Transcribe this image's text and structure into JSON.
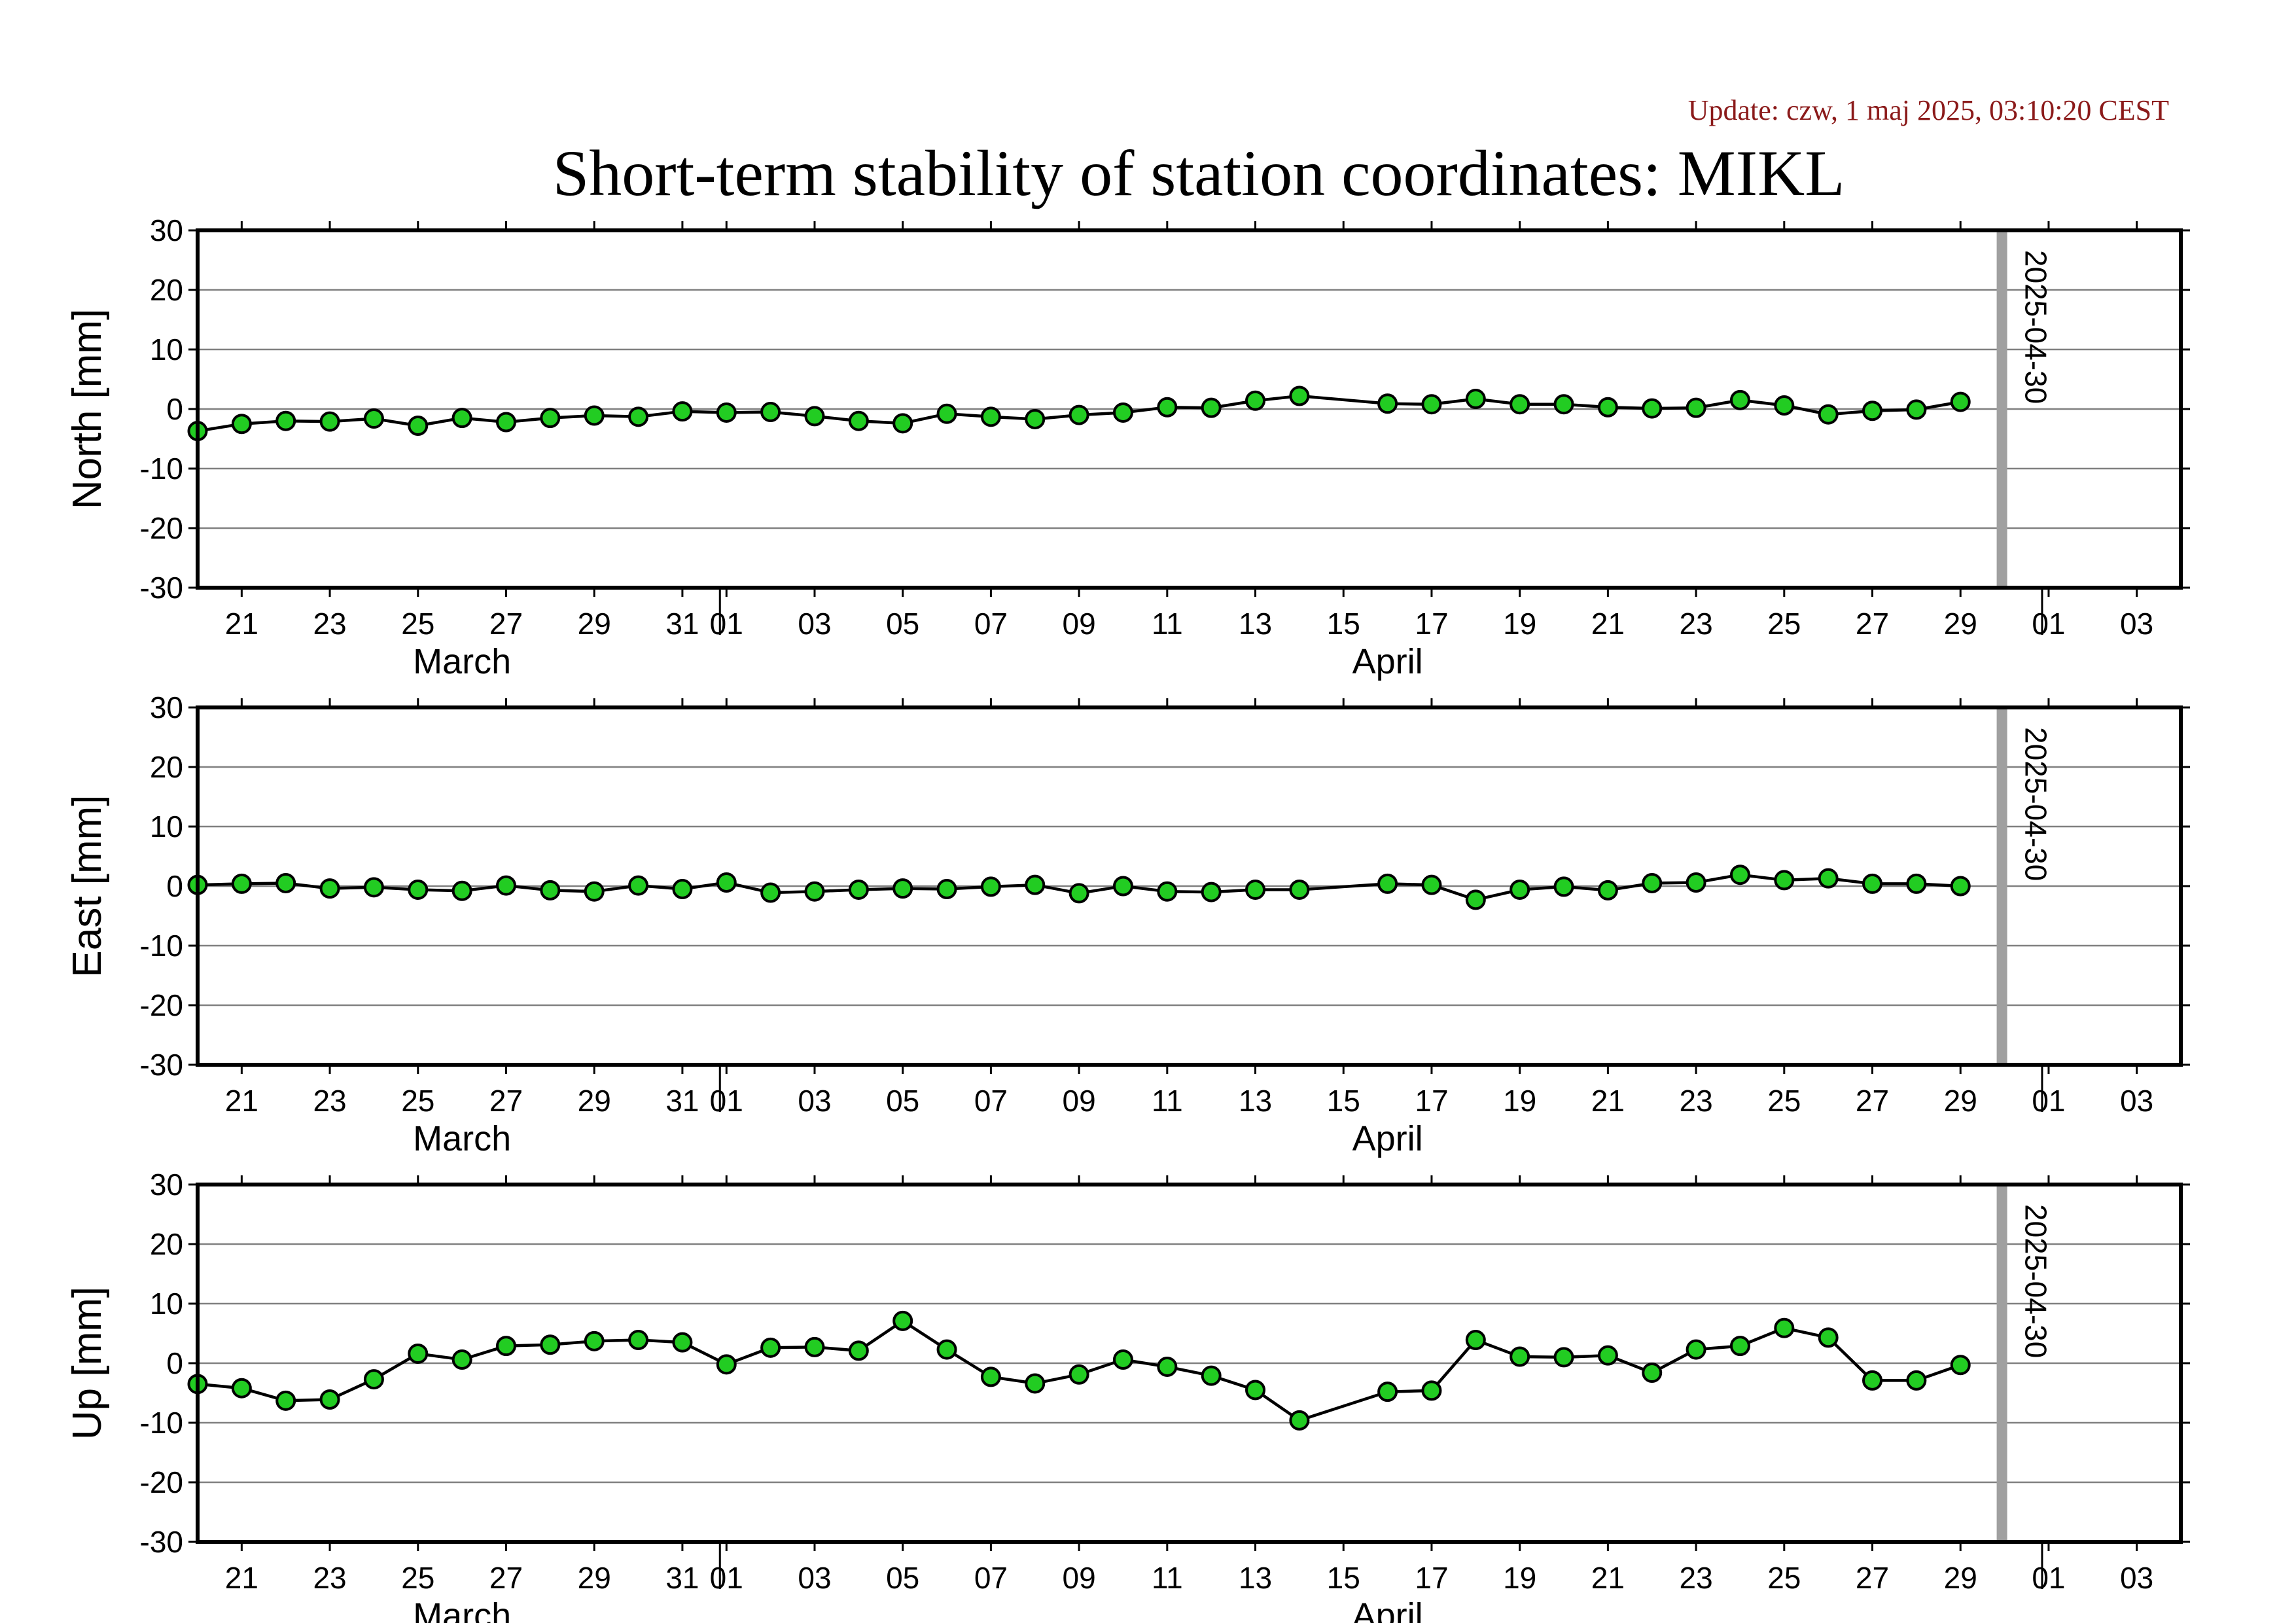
{
  "header": {
    "update": "Update: czw, 1 maj 2025, 03:10:20 CEST",
    "title": "Short-term stability of station coordinates: MIKL"
  },
  "colors": {
    "point_fill": "#22cc22",
    "point_stroke": "#000000",
    "marker_line": "#a0a0a0",
    "grid": "#808080"
  },
  "chart_data": [
    {
      "type": "line",
      "ylabel": "North [mm]",
      "ylim": [
        -30,
        30
      ],
      "yticks": [
        -30,
        -20,
        -10,
        0,
        10,
        20,
        30
      ],
      "grid": true,
      "marker": {
        "date": "2025-04-30",
        "label": "2025-04-30"
      },
      "x": [
        "2025-03-20",
        "2025-03-21",
        "2025-03-22",
        "2025-03-23",
        "2025-03-24",
        "2025-03-25",
        "2025-03-26",
        "2025-03-27",
        "2025-03-28",
        "2025-03-29",
        "2025-03-30",
        "2025-03-31",
        "2025-04-01",
        "2025-04-02",
        "2025-04-03",
        "2025-04-04",
        "2025-04-05",
        "2025-04-06",
        "2025-04-07",
        "2025-04-08",
        "2025-04-09",
        "2025-04-10",
        "2025-04-11",
        "2025-04-12",
        "2025-04-13",
        "2025-04-14",
        "2025-04-16",
        "2025-04-17",
        "2025-04-18",
        "2025-04-19",
        "2025-04-20",
        "2025-04-21",
        "2025-04-22",
        "2025-04-23",
        "2025-04-24",
        "2025-04-25",
        "2025-04-26",
        "2025-04-27",
        "2025-04-28",
        "2025-04-29"
      ],
      "y": [
        -3.7,
        -2.5,
        -2.0,
        -2.1,
        -1.6,
        -2.8,
        -1.5,
        -2.2,
        -1.5,
        -1.1,
        -1.3,
        -0.4,
        -0.6,
        -0.5,
        -1.2,
        -2.0,
        -2.4,
        -0.8,
        -1.3,
        -1.7,
        -1.0,
        -0.6,
        0.3,
        0.2,
        1.4,
        2.2,
        0.9,
        0.8,
        1.7,
        0.8,
        0.8,
        0.3,
        0.1,
        0.2,
        1.5,
        0.6,
        -0.9,
        -0.3,
        -0.1,
        1.2
      ]
    },
    {
      "type": "line",
      "ylabel": "East [mm]",
      "ylim": [
        -30,
        30
      ],
      "yticks": [
        -30,
        -20,
        -10,
        0,
        10,
        20,
        30
      ],
      "grid": true,
      "marker": {
        "date": "2025-04-30",
        "label": "2025-04-30"
      },
      "x": [
        "2025-03-20",
        "2025-03-21",
        "2025-03-22",
        "2025-03-23",
        "2025-03-24",
        "2025-03-25",
        "2025-03-26",
        "2025-03-27",
        "2025-03-28",
        "2025-03-29",
        "2025-03-30",
        "2025-03-31",
        "2025-04-01",
        "2025-04-02",
        "2025-04-03",
        "2025-04-04",
        "2025-04-05",
        "2025-04-06",
        "2025-04-07",
        "2025-04-08",
        "2025-04-09",
        "2025-04-10",
        "2025-04-11",
        "2025-04-12",
        "2025-04-13",
        "2025-04-14",
        "2025-04-16",
        "2025-04-17",
        "2025-04-18",
        "2025-04-19",
        "2025-04-20",
        "2025-04-21",
        "2025-04-22",
        "2025-04-23",
        "2025-04-24",
        "2025-04-25",
        "2025-04-26",
        "2025-04-27",
        "2025-04-28",
        "2025-04-29"
      ],
      "y": [
        0.2,
        0.4,
        0.5,
        -0.4,
        -0.2,
        -0.6,
        -0.8,
        0.1,
        -0.7,
        -0.9,
        0.1,
        -0.5,
        0.6,
        -1.1,
        -0.9,
        -0.6,
        -0.4,
        -0.5,
        -0.1,
        0.2,
        -1.2,
        0.0,
        -0.9,
        -1.0,
        -0.6,
        -0.6,
        0.4,
        0.2,
        -2.3,
        -0.6,
        -0.1,
        -0.7,
        0.5,
        0.6,
        1.9,
        1.0,
        1.3,
        0.4,
        0.4,
        0.0
      ]
    },
    {
      "type": "line",
      "ylabel": "Up [mm]",
      "ylim": [
        -30,
        30
      ],
      "yticks": [
        -30,
        -20,
        -10,
        0,
        10,
        20,
        30
      ],
      "grid": true,
      "marker": {
        "date": "2025-04-30",
        "label": "2025-04-30"
      },
      "x": [
        "2025-03-20",
        "2025-03-21",
        "2025-03-22",
        "2025-03-23",
        "2025-03-24",
        "2025-03-25",
        "2025-03-26",
        "2025-03-27",
        "2025-03-28",
        "2025-03-29",
        "2025-03-30",
        "2025-03-31",
        "2025-04-01",
        "2025-04-02",
        "2025-04-03",
        "2025-04-04",
        "2025-04-05",
        "2025-04-06",
        "2025-04-07",
        "2025-04-08",
        "2025-04-09",
        "2025-04-10",
        "2025-04-11",
        "2025-04-12",
        "2025-04-13",
        "2025-04-14",
        "2025-04-16",
        "2025-04-17",
        "2025-04-18",
        "2025-04-19",
        "2025-04-20",
        "2025-04-21",
        "2025-04-22",
        "2025-04-23",
        "2025-04-24",
        "2025-04-25",
        "2025-04-26",
        "2025-04-27",
        "2025-04-28",
        "2025-04-29"
      ],
      "y": [
        -3.5,
        -4.2,
        -6.3,
        -6.1,
        -2.7,
        1.6,
        0.6,
        2.9,
        3.1,
        3.7,
        3.9,
        3.5,
        -0.2,
        2.6,
        2.7,
        2.1,
        7.1,
        2.3,
        -2.3,
        -3.4,
        -1.9,
        0.6,
        -0.6,
        -2.1,
        -4.5,
        -9.6,
        -4.8,
        -4.6,
        3.9,
        1.1,
        1.0,
        1.3,
        -1.6,
        2.3,
        2.9,
        5.9,
        4.3,
        -2.9,
        -2.9,
        -0.3
      ]
    }
  ],
  "x_axis": {
    "range": [
      "2025-03-20",
      "2025-05-04"
    ],
    "ticks": [
      {
        "date": "2025-03-21",
        "label": "21"
      },
      {
        "date": "2025-03-23",
        "label": "23"
      },
      {
        "date": "2025-03-25",
        "label": "25"
      },
      {
        "date": "2025-03-27",
        "label": "27"
      },
      {
        "date": "2025-03-29",
        "label": "29"
      },
      {
        "date": "2025-03-31",
        "label": "31"
      },
      {
        "date": "2025-04-01",
        "label": "01"
      },
      {
        "date": "2025-04-03",
        "label": "03"
      },
      {
        "date": "2025-04-05",
        "label": "05"
      },
      {
        "date": "2025-04-07",
        "label": "07"
      },
      {
        "date": "2025-04-09",
        "label": "09"
      },
      {
        "date": "2025-04-11",
        "label": "11"
      },
      {
        "date": "2025-04-13",
        "label": "13"
      },
      {
        "date": "2025-04-15",
        "label": "15"
      },
      {
        "date": "2025-04-17",
        "label": "17"
      },
      {
        "date": "2025-04-19",
        "label": "19"
      },
      {
        "date": "2025-04-21",
        "label": "21"
      },
      {
        "date": "2025-04-23",
        "label": "23"
      },
      {
        "date": "2025-04-25",
        "label": "25"
      },
      {
        "date": "2025-04-27",
        "label": "27"
      },
      {
        "date": "2025-04-29",
        "label": "29"
      },
      {
        "date": "2025-05-01",
        "label": "01"
      },
      {
        "date": "2025-05-03",
        "label": "03"
      }
    ],
    "months": [
      {
        "label": "March",
        "date": "2025-03-26",
        "boundary": "2025-04-01"
      },
      {
        "label": "April",
        "date": "2025-04-16",
        "boundary": "2025-05-01"
      }
    ]
  }
}
